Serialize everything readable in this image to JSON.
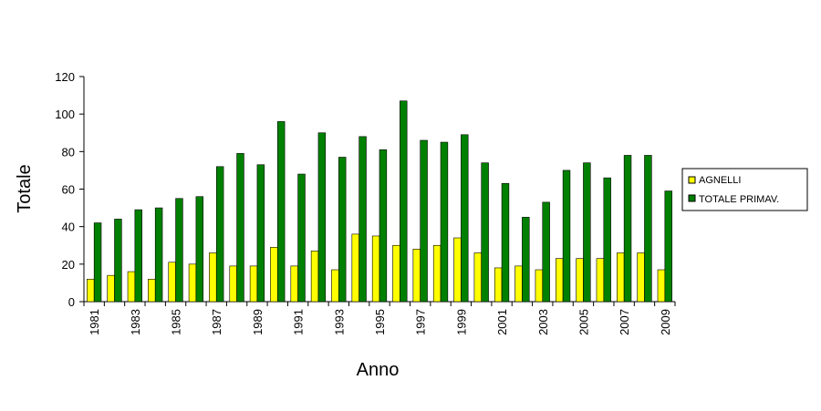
{
  "chart_data": {
    "type": "bar",
    "title": "",
    "xlabel": "Anno",
    "ylabel": "Totale",
    "ylim": [
      0,
      120
    ],
    "yticks": [
      0,
      20,
      40,
      60,
      80,
      100,
      120
    ],
    "grid": false,
    "legend_position": "right",
    "categories": [
      "1981",
      "1982",
      "1983",
      "1984",
      "1985",
      "1986",
      "1987",
      "1988",
      "1989",
      "1990",
      "1991",
      "1992",
      "1993",
      "1994",
      "1995",
      "1996",
      "1997",
      "1998",
      "1999",
      "2000",
      "2001",
      "2002",
      "2003",
      "2004",
      "2005",
      "2006",
      "2007",
      "2008",
      "2009"
    ],
    "x_tick_labels": [
      "1981",
      "1983",
      "1985",
      "1987",
      "1989",
      "1991",
      "1993",
      "1995",
      "1997",
      "1999",
      "2001",
      "2003",
      "2005",
      "2007",
      "2009"
    ],
    "series": [
      {
        "name": "AGNELLI",
        "color": "#ffff00",
        "values": [
          12,
          14,
          16,
          12,
          21,
          20,
          26,
          19,
          19,
          29,
          19,
          27,
          17,
          36,
          35,
          30,
          28,
          30,
          34,
          26,
          18,
          19,
          17,
          23,
          23,
          23,
          26,
          26,
          17
        ]
      },
      {
        "name": "TOTALE PRIMAV.",
        "color": "#008000",
        "values": [
          42,
          44,
          49,
          50,
          55,
          56,
          72,
          79,
          73,
          96,
          68,
          90,
          77,
          88,
          81,
          107,
          86,
          85,
          89,
          74,
          63,
          45,
          53,
          70,
          74,
          66,
          78,
          78,
          59
        ]
      }
    ]
  }
}
